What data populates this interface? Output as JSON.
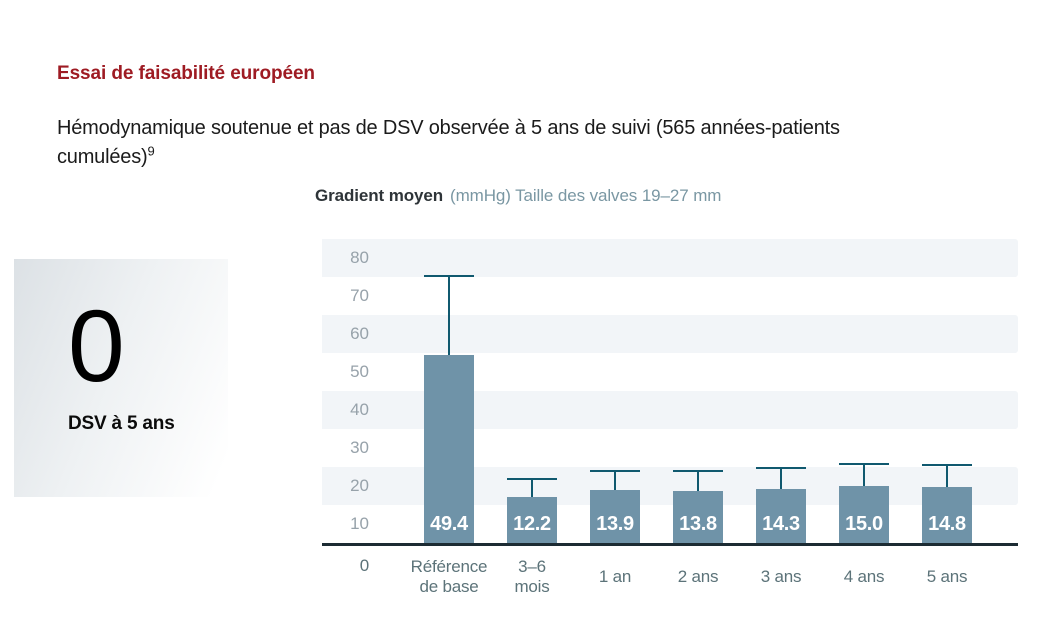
{
  "slide": {
    "title": "Essai de faisabilité européen",
    "subtitle_text": "Hémodynamique soutenue et pas de DSV observée à 5 ans de suivi (565 années-patients cumulées)",
    "subtitle_superscript": "9"
  },
  "stat_card": {
    "value": "0",
    "label": "DSV à 5 ans"
  },
  "chart_header": {
    "title_bold": "Gradient moyen",
    "title_muted": "(mmHg) Taille des valves 19–27 mm"
  },
  "chart_data": {
    "type": "bar",
    "title": "Gradient moyen (mmHg) Taille des valves 19–27 mm",
    "categories": [
      "Référence de base",
      "3–6 mois",
      "1 an",
      "2 ans",
      "3 ans",
      "4 ans",
      "5 ans"
    ],
    "categories_lines": [
      [
        "Référence",
        "de base"
      ],
      [
        "3–6",
        "mois"
      ],
      [
        "1 an"
      ],
      [
        "2 ans"
      ],
      [
        "3 ans"
      ],
      [
        "4 ans"
      ],
      [
        "5 ans"
      ]
    ],
    "values": [
      49.4,
      12.2,
      13.9,
      13.8,
      14.3,
      15.0,
      14.8
    ],
    "value_labels": [
      "49.4",
      "12.2",
      "13.9",
      "13.8",
      "14.3",
      "15.0",
      "14.8"
    ],
    "error_whisker_top": [
      70.4,
      17.1,
      19.2,
      19.1,
      20.1,
      21.0,
      20.8
    ],
    "y_ticks": [
      80,
      70,
      60,
      50,
      40,
      30,
      20,
      10,
      0
    ],
    "ylim": [
      0,
      80
    ],
    "xlabel": "",
    "ylabel": "Gradient moyen (mmHg)",
    "legend": "none",
    "grid": "alternating-horizontal-bands",
    "bands_light_at": [
      80,
      60,
      40,
      20
    ]
  },
  "colors": {
    "title_red": "#9E1B23",
    "text_dark": "#1B1B1B",
    "header_muted": "#7A97A3",
    "bar_fill": "#6F93A8",
    "whisker": "#10596F",
    "axis_line": "#1C2B33",
    "stripe_light": "#F2F5F8",
    "x_label": "#5C7379",
    "y_label": "#97A2AA",
    "value_label": "#FFFFFF",
    "card_start": "#DCE1E5",
    "card_end": "#FFFFFF"
  }
}
